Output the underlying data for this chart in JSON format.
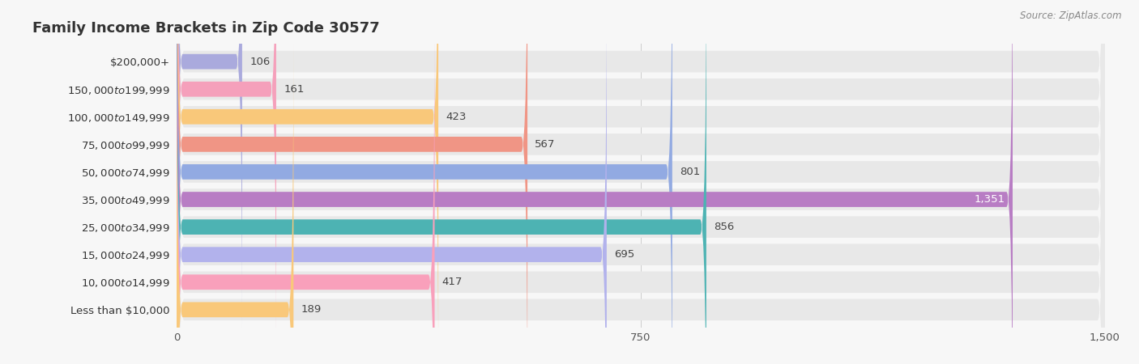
{
  "title": "Family Income Brackets in Zip Code 30577",
  "source": "Source: ZipAtlas.com",
  "categories": [
    "Less than $10,000",
    "$10,000 to $14,999",
    "$15,000 to $24,999",
    "$25,000 to $34,999",
    "$35,000 to $49,999",
    "$50,000 to $74,999",
    "$75,000 to $99,999",
    "$100,000 to $149,999",
    "$150,000 to $199,999",
    "$200,000+"
  ],
  "values": [
    106,
    161,
    423,
    567,
    801,
    1351,
    856,
    695,
    417,
    189
  ],
  "bar_colors": [
    "#aaaadd",
    "#f5a0bb",
    "#f9c87a",
    "#f09585",
    "#92aae2",
    "#b87dc4",
    "#4db3b3",
    "#b2b2ec",
    "#f9a0bb",
    "#f9c87a"
  ],
  "xlim": [
    0,
    1500
  ],
  "xticks": [
    0,
    750,
    1500
  ],
  "background_color": "#f7f7f7",
  "bar_bg_color": "#e8e8e8",
  "title_fontsize": 13,
  "label_fontsize": 9.5,
  "value_fontsize": 9.5,
  "tick_fontsize": 9.5
}
